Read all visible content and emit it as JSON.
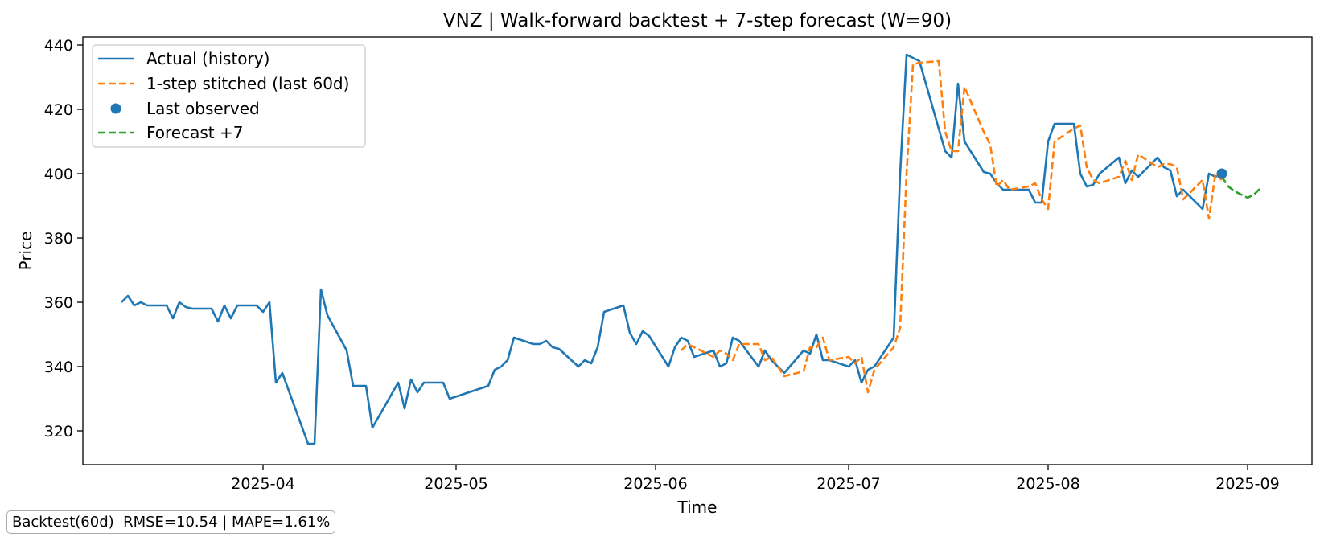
{
  "chart_data": {
    "type": "line",
    "title": "VNZ | Walk-forward backtest + 7-step forecast (W=90)",
    "xlabel": "Time",
    "ylabel": "Price",
    "xlim": [
      "2025-03-04",
      "2025-09-11"
    ],
    "ylim": [
      309.5,
      442.5
    ],
    "x_ticks": [
      "2025-04-01",
      "2025-05-01",
      "2025-06-01",
      "2025-07-01",
      "2025-08-01",
      "2025-09-01"
    ],
    "x_tick_labels": [
      "2025-04",
      "2025-05",
      "2025-06",
      "2025-07",
      "2025-08",
      "2025-09"
    ],
    "y_ticks": [
      320,
      340,
      360,
      380,
      400,
      420,
      440
    ],
    "grid": false,
    "legend_position": "top-left",
    "legend": [
      {
        "label": "Actual (history)",
        "style": "solid-line",
        "color": "#1f77b4"
      },
      {
        "label": "1-step stitched (last 60d)",
        "style": "dashed-line",
        "color": "#ff7f0e"
      },
      {
        "label": "Last observed",
        "style": "marker",
        "color": "#1f77b4"
      },
      {
        "label": "Forecast +7",
        "style": "dashed-line",
        "color": "#2ca02c"
      }
    ],
    "series": [
      {
        "name": "Actual (history)",
        "color": "#1f77b4",
        "dashed": false,
        "points": [
          [
            "2025-03-10",
            360
          ],
          [
            "2025-03-11",
            362
          ],
          [
            "2025-03-12",
            359
          ],
          [
            "2025-03-13",
            360
          ],
          [
            "2025-03-14",
            359
          ],
          [
            "2025-03-17",
            359
          ],
          [
            "2025-03-18",
            355
          ],
          [
            "2025-03-19",
            360
          ],
          [
            "2025-03-20",
            358.5
          ],
          [
            "2025-03-21",
            358
          ],
          [
            "2025-03-24",
            358
          ],
          [
            "2025-03-25",
            354
          ],
          [
            "2025-03-26",
            359
          ],
          [
            "2025-03-27",
            355
          ],
          [
            "2025-03-28",
            359
          ],
          [
            "2025-03-31",
            359
          ],
          [
            "2025-04-01",
            357
          ],
          [
            "2025-04-02",
            360
          ],
          [
            "2025-04-03",
            335
          ],
          [
            "2025-04-04",
            338
          ],
          [
            "2025-04-08",
            316
          ],
          [
            "2025-04-09",
            316
          ],
          [
            "2025-04-10",
            364
          ],
          [
            "2025-04-11",
            356
          ],
          [
            "2025-04-14",
            345
          ],
          [
            "2025-04-15",
            334
          ],
          [
            "2025-04-17",
            334
          ],
          [
            "2025-04-18",
            321
          ],
          [
            "2025-04-22",
            335
          ],
          [
            "2025-04-23",
            327
          ],
          [
            "2025-04-24",
            336
          ],
          [
            "2025-04-25",
            332
          ],
          [
            "2025-04-26",
            335
          ],
          [
            "2025-04-29",
            335
          ],
          [
            "2025-04-30",
            330
          ],
          [
            "2025-05-06",
            334
          ],
          [
            "2025-05-07",
            339
          ],
          [
            "2025-05-08",
            340
          ],
          [
            "2025-05-09",
            342
          ],
          [
            "2025-05-10",
            349
          ],
          [
            "2025-05-13",
            347
          ],
          [
            "2025-05-14",
            347
          ],
          [
            "2025-05-15",
            348
          ],
          [
            "2025-05-16",
            346
          ],
          [
            "2025-05-17",
            345.5
          ],
          [
            "2025-05-20",
            340
          ],
          [
            "2025-05-21",
            342
          ],
          [
            "2025-05-22",
            341
          ],
          [
            "2025-05-23",
            346
          ],
          [
            "2025-05-24",
            357
          ],
          [
            "2025-05-27",
            359
          ],
          [
            "2025-05-28",
            350.5
          ],
          [
            "2025-05-29",
            347
          ],
          [
            "2025-05-30",
            351
          ],
          [
            "2025-05-31",
            349.5
          ],
          [
            "2025-06-03",
            340
          ],
          [
            "2025-06-04",
            346
          ],
          [
            "2025-06-05",
            349
          ],
          [
            "2025-06-06",
            348
          ],
          [
            "2025-06-07",
            343
          ],
          [
            "2025-06-10",
            345
          ],
          [
            "2025-06-11",
            340
          ],
          [
            "2025-06-12",
            341
          ],
          [
            "2025-06-13",
            349
          ],
          [
            "2025-06-14",
            348
          ],
          [
            "2025-06-17",
            340
          ],
          [
            "2025-06-18",
            345
          ],
          [
            "2025-06-19",
            342
          ],
          [
            "2025-06-21",
            338
          ],
          [
            "2025-06-24",
            345
          ],
          [
            "2025-06-25",
            344
          ],
          [
            "2025-06-26",
            350
          ],
          [
            "2025-06-27",
            342
          ],
          [
            "2025-06-28",
            342
          ],
          [
            "2025-07-01",
            340
          ],
          [
            "2025-07-02",
            342
          ],
          [
            "2025-07-03",
            335
          ],
          [
            "2025-07-04",
            339
          ],
          [
            "2025-07-05",
            340
          ],
          [
            "2025-07-08",
            349
          ],
          [
            "2025-07-09",
            400
          ],
          [
            "2025-07-10",
            437
          ],
          [
            "2025-07-11",
            436
          ],
          [
            "2025-07-12",
            435
          ],
          [
            "2025-07-15",
            414
          ],
          [
            "2025-07-16",
            407
          ],
          [
            "2025-07-17",
            405
          ],
          [
            "2025-07-18",
            428
          ],
          [
            "2025-07-19",
            410
          ],
          [
            "2025-07-22",
            400.5
          ],
          [
            "2025-07-23",
            400
          ],
          [
            "2025-07-24",
            397
          ],
          [
            "2025-07-25",
            395
          ],
          [
            "2025-07-26",
            395
          ],
          [
            "2025-07-29",
            395
          ],
          [
            "2025-07-30",
            391
          ],
          [
            "2025-07-31",
            391
          ],
          [
            "2025-08-01",
            410
          ],
          [
            "2025-08-02",
            415.5
          ],
          [
            "2025-08-05",
            415.5
          ],
          [
            "2025-08-06",
            400
          ],
          [
            "2025-08-07",
            396
          ],
          [
            "2025-08-08",
            396.5
          ],
          [
            "2025-08-09",
            400
          ],
          [
            "2025-08-12",
            405
          ],
          [
            "2025-08-13",
            397
          ],
          [
            "2025-08-14",
            401
          ],
          [
            "2025-08-15",
            399
          ],
          [
            "2025-08-18",
            405
          ],
          [
            "2025-08-19",
            402
          ],
          [
            "2025-08-20",
            401
          ],
          [
            "2025-08-21",
            393
          ],
          [
            "2025-08-22",
            395
          ],
          [
            "2025-08-25",
            389
          ],
          [
            "2025-08-26",
            400
          ],
          [
            "2025-08-27",
            399
          ],
          [
            "2025-08-28",
            400
          ]
        ]
      },
      {
        "name": "1-step stitched (last 60d)",
        "color": "#ff7f0e",
        "dashed": true,
        "points": [
          [
            "2025-06-05",
            345
          ],
          [
            "2025-06-06",
            347
          ],
          [
            "2025-06-07",
            346
          ],
          [
            "2025-06-10",
            343
          ],
          [
            "2025-06-11",
            345
          ],
          [
            "2025-06-12",
            344
          ],
          [
            "2025-06-13",
            342
          ],
          [
            "2025-06-14",
            347
          ],
          [
            "2025-06-17",
            347
          ],
          [
            "2025-06-18",
            342
          ],
          [
            "2025-06-19",
            343
          ],
          [
            "2025-06-21",
            337
          ],
          [
            "2025-06-24",
            338.5
          ],
          [
            "2025-06-25",
            346
          ],
          [
            "2025-06-26",
            346
          ],
          [
            "2025-06-27",
            349
          ],
          [
            "2025-06-28",
            342
          ],
          [
            "2025-07-01",
            343
          ],
          [
            "2025-07-02",
            341
          ],
          [
            "2025-07-03",
            343
          ],
          [
            "2025-07-04",
            332
          ],
          [
            "2025-07-05",
            339
          ],
          [
            "2025-07-08",
            346
          ],
          [
            "2025-07-09",
            352
          ],
          [
            "2025-07-10",
            400
          ],
          [
            "2025-07-11",
            434
          ],
          [
            "2025-07-12",
            434.5
          ],
          [
            "2025-07-15",
            435
          ],
          [
            "2025-07-16",
            413
          ],
          [
            "2025-07-17",
            407
          ],
          [
            "2025-07-18",
            407
          ],
          [
            "2025-07-19",
            427
          ],
          [
            "2025-07-22",
            413
          ],
          [
            "2025-07-23",
            409
          ],
          [
            "2025-07-24",
            396
          ],
          [
            "2025-07-25",
            398
          ],
          [
            "2025-07-26",
            395
          ],
          [
            "2025-07-29",
            396
          ],
          [
            "2025-07-30",
            397
          ],
          [
            "2025-07-31",
            392
          ],
          [
            "2025-08-01",
            389
          ],
          [
            "2025-08-02",
            410
          ],
          [
            "2025-08-05",
            414
          ],
          [
            "2025-08-06",
            415
          ],
          [
            "2025-08-07",
            402
          ],
          [
            "2025-08-08",
            398
          ],
          [
            "2025-08-09",
            397
          ],
          [
            "2025-08-12",
            399
          ],
          [
            "2025-08-13",
            404
          ],
          [
            "2025-08-14",
            398
          ],
          [
            "2025-08-15",
            406
          ],
          [
            "2025-08-18",
            402
          ],
          [
            "2025-08-19",
            403
          ],
          [
            "2025-08-20",
            403
          ],
          [
            "2025-08-21",
            402
          ],
          [
            "2025-08-22",
            392
          ],
          [
            "2025-08-25",
            398
          ],
          [
            "2025-08-26",
            386
          ],
          [
            "2025-08-27",
            400
          ],
          [
            "2025-08-28",
            398
          ]
        ]
      },
      {
        "name": "Forecast +7",
        "color": "#2ca02c",
        "dashed": true,
        "points": [
          [
            "2025-08-28",
            399
          ],
          [
            "2025-08-29",
            396
          ],
          [
            "2025-08-30",
            394.5
          ],
          [
            "2025-08-31",
            393.5
          ],
          [
            "2025-09-01",
            392.5
          ],
          [
            "2025-09-02",
            393.5
          ],
          [
            "2025-09-03",
            395.5
          ]
        ]
      }
    ],
    "last_observed": {
      "name": "Last observed",
      "x": "2025-08-28",
      "y": 400,
      "color": "#1f77b4"
    }
  },
  "footer": {
    "metrics_text": "Backtest(60d)  RMSE=10.54 | MAPE=1.61%"
  }
}
